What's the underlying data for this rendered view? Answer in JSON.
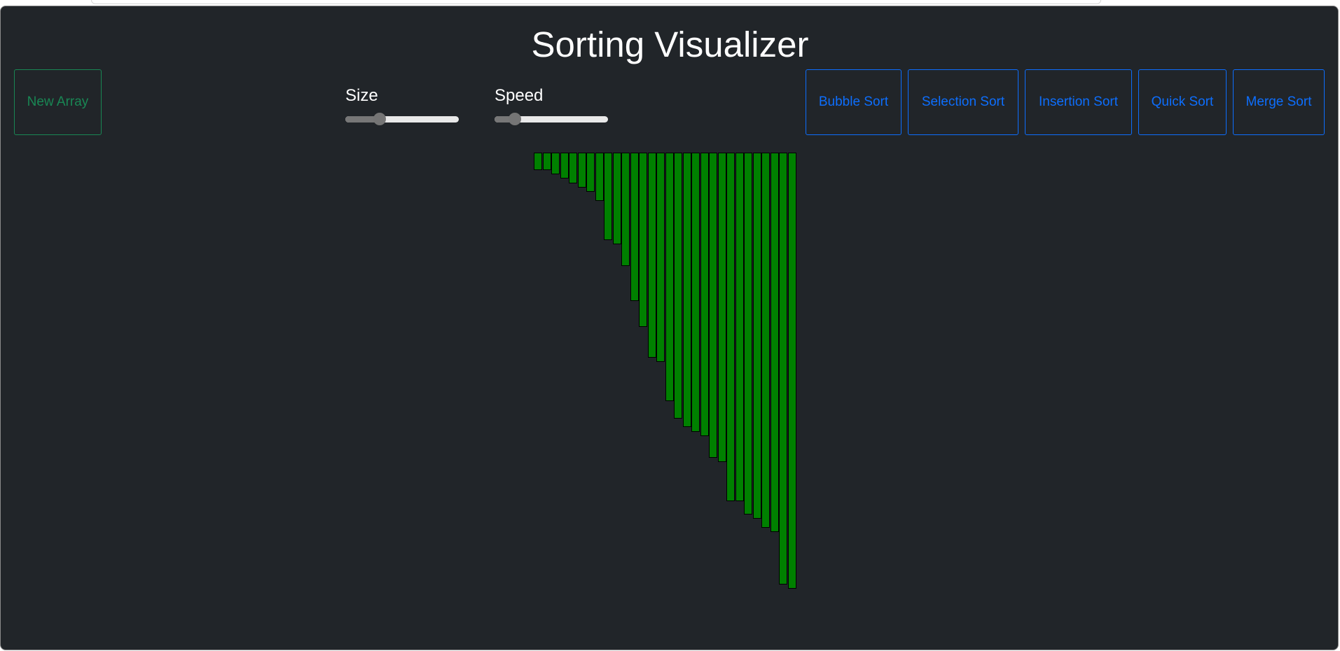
{
  "app": {
    "title": "Sorting Visualizer"
  },
  "toolbar": {
    "new_array_label": "New Array",
    "size_label": "Size",
    "speed_label": "Speed",
    "size_value": 0.3,
    "speed_value": 0.18,
    "algorithms": [
      "Bubble Sort",
      "Selection Sort",
      "Insertion Sort",
      "Quick Sort",
      "Merge Sort"
    ]
  },
  "colors": {
    "background": "#212529",
    "bar": "#008000",
    "bar_border": "#000000",
    "success": "#198754",
    "primary": "#0d6efd"
  },
  "array": {
    "max_value": 100,
    "values": [
      4,
      4,
      5,
      6,
      7,
      8,
      9,
      11,
      20,
      21,
      26,
      34,
      40,
      47,
      48,
      57,
      61,
      63,
      64,
      65,
      70,
      71,
      80,
      80,
      83,
      84,
      86,
      87,
      99,
      100
    ]
  }
}
